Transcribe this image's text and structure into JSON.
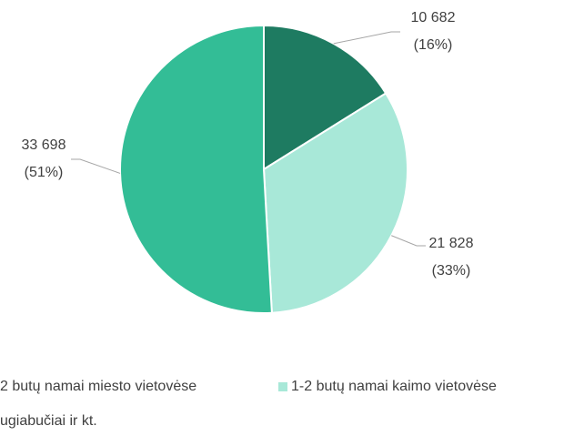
{
  "chart_data": {
    "type": "pie",
    "categories": [
      "2 butų namai miesto vietovėse",
      "1-2 butų namai kaimo vietovėse",
      "ugiabučiai ir kt."
    ],
    "values": [
      10682,
      21828,
      33698
    ],
    "value_labels": [
      "10 682",
      "21 828",
      "33 698"
    ],
    "percents": [
      16,
      33,
      51
    ],
    "percent_labels": [
      "(16%)",
      "(33%)",
      "(51%)"
    ],
    "colors": [
      "#1e7b61",
      "#a8e8d8",
      "#33bd96"
    ]
  }
}
